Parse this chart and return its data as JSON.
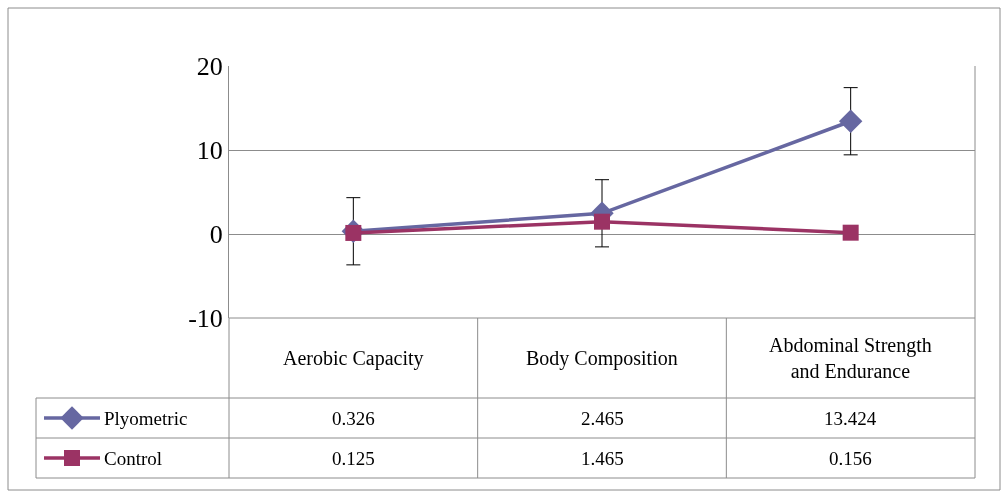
{
  "chart_data": {
    "type": "line",
    "categories": [
      "Aerobic Capacity",
      "Body Composition",
      "Abdominal Strength and Endurance"
    ],
    "series": [
      {
        "name": "Plyometric",
        "color": "#6667a1",
        "marker": "diamond",
        "values": [
          0.326,
          2.465,
          13.424
        ],
        "errors": [
          4,
          4,
          4
        ]
      },
      {
        "name": "Control",
        "color": "#9b3364",
        "marker": "square",
        "values": [
          0.125,
          1.465,
          0.156
        ]
      }
    ],
    "ylim": [
      -10,
      20
    ],
    "yticks": [
      -10,
      0,
      10,
      20
    ],
    "grid": "y",
    "data_labels": true,
    "legend": "bottom left",
    "line_style": "solid"
  }
}
